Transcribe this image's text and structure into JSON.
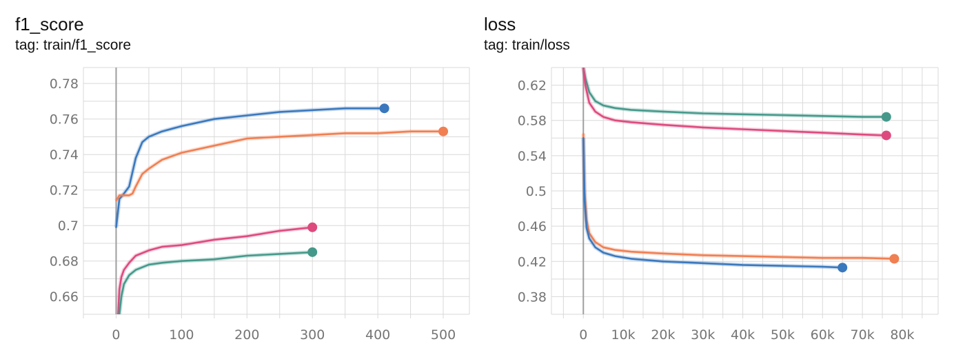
{
  "charts": [
    {
      "title": "f1_score",
      "subtitle": "tag: train/f1_score"
    },
    {
      "title": "loss",
      "subtitle": "tag: train/loss"
    }
  ],
  "colors": {
    "blue": "#3a78bd",
    "orange": "#f07f52",
    "pink": "#dd4a7e",
    "teal": "#45998a",
    "grid": "#d9d9d9",
    "zero_axis": "#9e9e9e",
    "tick_text": "#757575"
  },
  "chart_data": [
    {
      "type": "line",
      "title": "f1_score",
      "subtitle": "tag: train/f1_score",
      "xlabel": "",
      "ylabel": "",
      "xlim": [
        -50,
        540
      ],
      "ylim": [
        0.65,
        0.789
      ],
      "x_ticks": [
        {
          "v": 0,
          "label": "0"
        },
        {
          "v": 100,
          "label": "100"
        },
        {
          "v": 200,
          "label": "200"
        },
        {
          "v": 300,
          "label": "300"
        },
        {
          "v": 400,
          "label": "400"
        },
        {
          "v": 500,
          "label": "500"
        }
      ],
      "y_ticks": [
        {
          "v": 0.66,
          "label": "0.66"
        },
        {
          "v": 0.68,
          "label": "0.68"
        },
        {
          "v": 0.7,
          "label": "0.7"
        },
        {
          "v": 0.72,
          "label": "0.72"
        },
        {
          "v": 0.74,
          "label": "0.74"
        },
        {
          "v": 0.76,
          "label": "0.76"
        },
        {
          "v": 0.78,
          "label": "0.78"
        }
      ],
      "grid": true,
      "series": [
        {
          "color": "blue",
          "x": [
            0,
            5,
            10,
            20,
            30,
            40,
            50,
            70,
            100,
            150,
            200,
            250,
            300,
            350,
            400,
            410
          ],
          "y": [
            0.699,
            0.715,
            0.717,
            0.722,
            0.738,
            0.747,
            0.75,
            0.753,
            0.756,
            0.76,
            0.762,
            0.764,
            0.765,
            0.766,
            0.766,
            0.766
          ]
        },
        {
          "color": "orange",
          "x": [
            0,
            5,
            10,
            20,
            25,
            30,
            40,
            50,
            70,
            100,
            150,
            200,
            250,
            300,
            350,
            400,
            450,
            500
          ],
          "y": [
            0.714,
            0.717,
            0.717,
            0.717,
            0.718,
            0.722,
            0.729,
            0.732,
            0.737,
            0.741,
            0.745,
            0.749,
            0.75,
            0.751,
            0.752,
            0.752,
            0.753,
            0.753
          ]
        },
        {
          "color": "pink",
          "x": [
            3,
            5,
            8,
            12,
            20,
            30,
            50,
            70,
            100,
            150,
            200,
            250,
            300
          ],
          "y": [
            0.65,
            0.664,
            0.671,
            0.675,
            0.679,
            0.683,
            0.686,
            0.688,
            0.689,
            0.692,
            0.694,
            0.697,
            0.699
          ]
        },
        {
          "color": "teal",
          "x": [
            5,
            8,
            12,
            20,
            30,
            50,
            70,
            100,
            150,
            200,
            250,
            300
          ],
          "y": [
            0.65,
            0.66,
            0.667,
            0.672,
            0.675,
            0.678,
            0.679,
            0.68,
            0.681,
            0.683,
            0.684,
            0.685
          ]
        }
      ]
    },
    {
      "type": "line",
      "title": "loss",
      "subtitle": "tag: train/loss",
      "xlabel": "",
      "ylabel": "",
      "xlim": [
        -8000,
        89000
      ],
      "ylim": [
        0.36,
        0.64
      ],
      "x_ticks": [
        {
          "v": 0,
          "label": "0"
        },
        {
          "v": 10000,
          "label": "10k"
        },
        {
          "v": 20000,
          "label": "20k"
        },
        {
          "v": 30000,
          "label": "30k"
        },
        {
          "v": 40000,
          "label": "40k"
        },
        {
          "v": 50000,
          "label": "50k"
        },
        {
          "v": 60000,
          "label": "60k"
        },
        {
          "v": 70000,
          "label": "70k"
        },
        {
          "v": 80000,
          "label": "80k"
        }
      ],
      "y_ticks": [
        {
          "v": 0.38,
          "label": "0.38"
        },
        {
          "v": 0.42,
          "label": "0.42"
        },
        {
          "v": 0.46,
          "label": "0.46"
        },
        {
          "v": 0.5,
          "label": "0.5"
        },
        {
          "v": 0.54,
          "label": "0.54"
        },
        {
          "v": 0.58,
          "label": "0.58"
        },
        {
          "v": 0.62,
          "label": "0.62"
        }
      ],
      "grid": true,
      "series": [
        {
          "color": "teal",
          "x": [
            0,
            500,
            1500,
            3000,
            5000,
            8000,
            12000,
            20000,
            30000,
            40000,
            50000,
            60000,
            70000,
            76000
          ],
          "y": [
            0.64,
            0.628,
            0.612,
            0.602,
            0.597,
            0.594,
            0.592,
            0.59,
            0.588,
            0.587,
            0.586,
            0.585,
            0.584,
            0.584
          ]
        },
        {
          "color": "pink",
          "x": [
            0,
            500,
            1500,
            3000,
            5000,
            8000,
            12000,
            20000,
            30000,
            40000,
            50000,
            60000,
            70000,
            76000
          ],
          "y": [
            0.64,
            0.62,
            0.6,
            0.59,
            0.584,
            0.58,
            0.578,
            0.575,
            0.572,
            0.57,
            0.568,
            0.566,
            0.564,
            0.563
          ]
        },
        {
          "color": "orange",
          "x": [
            0,
            300,
            800,
            1500,
            3000,
            5000,
            8000,
            12000,
            20000,
            30000,
            40000,
            50000,
            60000,
            70000,
            78000
          ],
          "y": [
            0.565,
            0.5,
            0.467,
            0.452,
            0.442,
            0.436,
            0.433,
            0.431,
            0.429,
            0.427,
            0.426,
            0.425,
            0.424,
            0.424,
            0.423
          ]
        },
        {
          "color": "blue",
          "x": [
            0,
            300,
            800,
            1500,
            3000,
            5000,
            8000,
            12000,
            20000,
            30000,
            40000,
            50000,
            60000,
            65000
          ],
          "y": [
            0.56,
            0.49,
            0.458,
            0.446,
            0.436,
            0.43,
            0.426,
            0.423,
            0.42,
            0.418,
            0.416,
            0.415,
            0.414,
            0.413
          ]
        }
      ]
    }
  ]
}
